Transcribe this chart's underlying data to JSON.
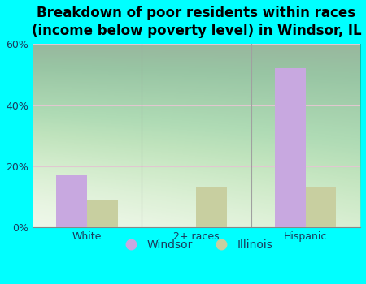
{
  "title": "Breakdown of poor residents within races\n(income below poverty level) in Windsor, IL",
  "categories": [
    "White",
    "2+ races",
    "Hispanic"
  ],
  "windsor_values": [
    17.0,
    0.0,
    52.0
  ],
  "illinois_values": [
    9.0,
    13.0,
    13.0
  ],
  "windsor_color": "#c8a8e0",
  "illinois_color": "#c8cfa0",
  "bg_color": "#00ffff",
  "plot_bg_color": "#eaf5e4",
  "grid_color": "#e0c8d0",
  "separator_color": "#a0a0a0",
  "ylim": [
    0,
    60
  ],
  "yticks": [
    0,
    20,
    40,
    60
  ],
  "ytick_labels": [
    "0%",
    "20%",
    "40%",
    "60%"
  ],
  "bar_width": 0.28,
  "title_fontsize": 12,
  "tick_fontsize": 9,
  "legend_fontsize": 10,
  "text_color": "#1a3a5c"
}
